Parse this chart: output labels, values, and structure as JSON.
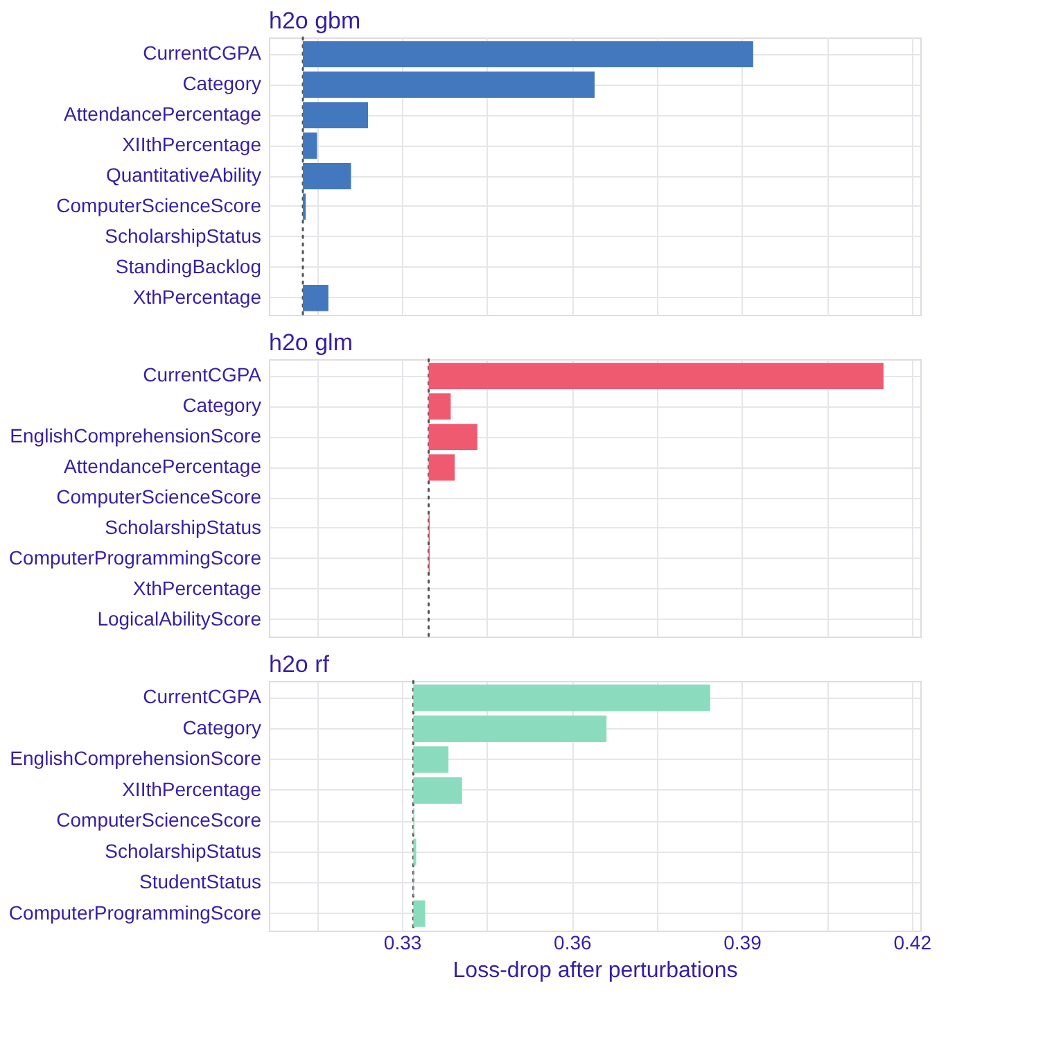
{
  "chart_data": [
    {
      "type": "bar",
      "orientation": "horizontal",
      "title": "h2o gbm",
      "categories": [
        "CurrentCGPA",
        "Category",
        "AttendancePercentage",
        "XIIthPercentage",
        "QuantitativeAbility",
        "ComputerScienceScore",
        "ScholarshipStatus",
        "StandingBacklog",
        "XthPercentage"
      ],
      "series": [
        {
          "color": "#4378bf",
          "values": [
            0.0795,
            0.0515,
            0.0115,
            0.0025,
            0.0085,
            0.0005,
            null,
            null,
            0.0045
          ],
          "base": [
            0.3125,
            0.3125,
            0.3125,
            0.3125,
            0.3125,
            0.3125,
            null,
            null,
            0.3125
          ]
        }
      ],
      "ref_lines": [
        {
          "axis": "x",
          "value": 0.3125,
          "line_style": "dotted"
        }
      ],
      "xlim": [
        0.3065,
        0.4215
      ],
      "xticks": [
        {
          "value": 0.315,
          "label": null
        },
        {
          "value": 0.33,
          "label": null
        },
        {
          "value": 0.345,
          "label": null
        },
        {
          "value": 0.36,
          "label": null
        },
        {
          "value": 0.375,
          "label": null
        },
        {
          "value": 0.39,
          "label": null
        },
        {
          "value": 0.405,
          "label": null
        },
        {
          "value": 0.42,
          "label": null
        }
      ],
      "grid": true,
      "tick_labels": "y"
    },
    {
      "type": "bar",
      "orientation": "horizontal",
      "title": "h2o glm",
      "categories": [
        "CurrentCGPA",
        "Category",
        "EnglishComprehensionScore",
        "AttendancePercentage",
        "ComputerScienceScore",
        "ScholarshipStatus",
        "ComputerProgrammingScore",
        "XthPercentage",
        "LogicalAbilityScore"
      ],
      "series": [
        {
          "color": "#f05a71",
          "values": [
            0.0803,
            0.0039,
            0.0086,
            0.0046,
            null,
            0.0002,
            0.0002,
            null,
            null
          ],
          "base": [
            0.3347,
            0.3347,
            0.3347,
            0.3347,
            null,
            0.3347,
            0.3347,
            null,
            null
          ]
        }
      ],
      "ref_lines": [
        {
          "axis": "x",
          "value": 0.3347,
          "line_style": "dotted"
        }
      ],
      "xlim": [
        0.3065,
        0.4215
      ],
      "xticks": [
        {
          "value": 0.315,
          "label": null
        },
        {
          "value": 0.33,
          "label": null
        },
        {
          "value": 0.345,
          "label": null
        },
        {
          "value": 0.36,
          "label": null
        },
        {
          "value": 0.375,
          "label": null
        },
        {
          "value": 0.39,
          "label": null
        },
        {
          "value": 0.405,
          "label": null
        },
        {
          "value": 0.42,
          "label": null
        }
      ],
      "grid": true,
      "tick_labels": "y"
    },
    {
      "type": "bar",
      "orientation": "horizontal",
      "title": "h2o rf",
      "xlabel": "Loss-drop after perturbations",
      "categories": [
        "CurrentCGPA",
        "Category",
        "EnglishComprehensionScore",
        "XIIthPercentage",
        "ComputerScienceScore",
        "ScholarshipStatus",
        "StudentStatus",
        "ComputerProgrammingScore"
      ],
      "series": [
        {
          "color": "#8bdcbe",
          "values": [
            0.0524,
            0.0341,
            0.0062,
            0.0086,
            0.0002,
            0.0005,
            0.0001,
            0.0021
          ],
          "base": [
            0.332,
            0.332,
            0.332,
            0.332,
            0.332,
            0.332,
            0.332,
            0.332
          ]
        }
      ],
      "ref_lines": [
        {
          "axis": "x",
          "value": 0.332,
          "line_style": "dotted"
        }
      ],
      "xlim": [
        0.3065,
        0.4215
      ],
      "xticks": [
        {
          "value": 0.315,
          "label": null
        },
        0.33,
        {
          "value": 0.345,
          "label": null
        },
        0.36,
        {
          "value": 0.375,
          "label": null
        },
        0.39,
        {
          "value": 0.405,
          "label": null
        },
        0.42
      ],
      "grid": true
    }
  ]
}
